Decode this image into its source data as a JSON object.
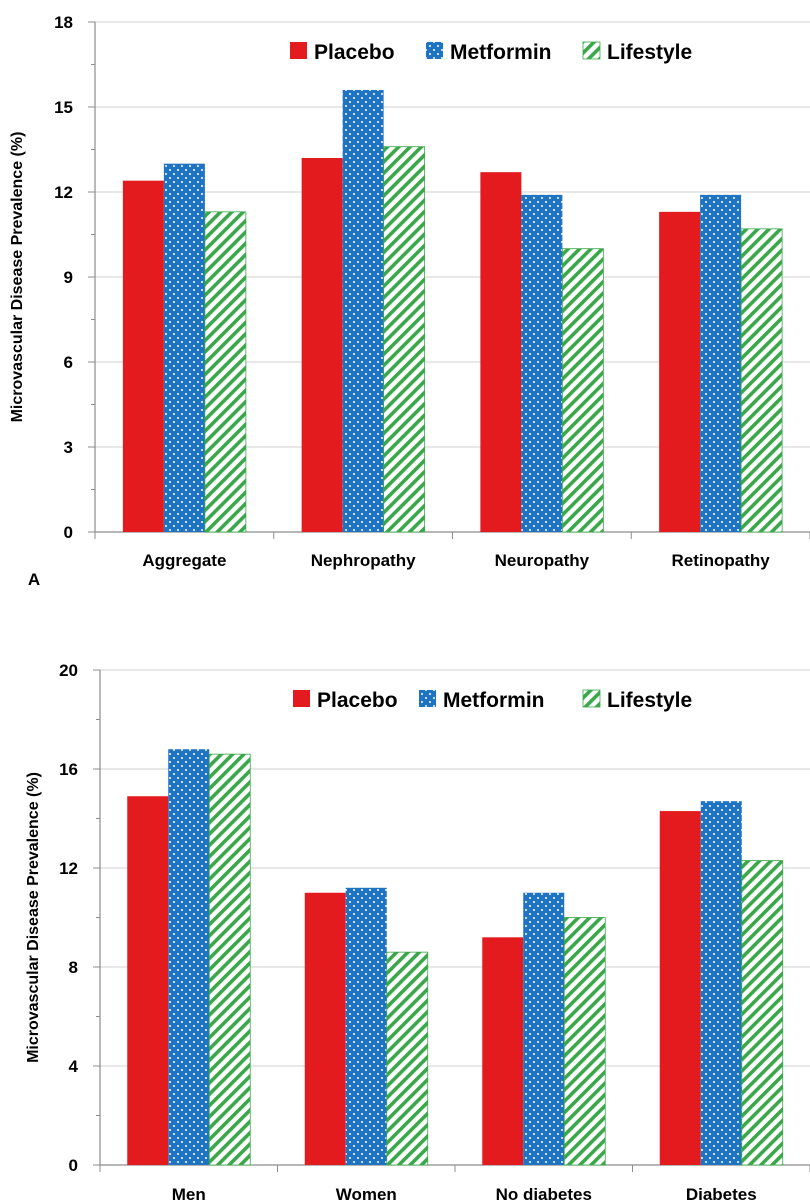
{
  "colors": {
    "placebo": "#e31b1f",
    "metformin": "#1f73c3",
    "lifestyle": "#3aa84a",
    "axis": "#8c8c8c",
    "grid": "#d0d0d0"
  },
  "chart_data": [
    {
      "type": "bar",
      "panel_label": "A",
      "ylabel": "Microvascular Disease Prevalence (%)",
      "xlabel": "",
      "categories": [
        "Aggregate",
        "Nephropathy",
        "Neuropathy",
        "Retinopathy"
      ],
      "ylim": [
        0,
        18
      ],
      "yticks": [
        0,
        3,
        6,
        9,
        12,
        15,
        18
      ],
      "grid": true,
      "legend_position": "top",
      "series": [
        {
          "name": "Placebo",
          "pattern": "solid",
          "values": [
            12.4,
            13.2,
            12.7,
            11.3
          ]
        },
        {
          "name": "Metformin",
          "pattern": "dots",
          "values": [
            13.0,
            15.6,
            11.9,
            11.9
          ]
        },
        {
          "name": "Lifestyle",
          "pattern": "stripes",
          "values": [
            11.3,
            13.6,
            10.0,
            10.7
          ]
        }
      ]
    },
    {
      "type": "bar",
      "panel_label": "",
      "ylabel": "Microvascular Disease Prevalence (%)",
      "xlabel": "",
      "categories": [
        "Men",
        "Women",
        "No diabetes",
        "Diabetes"
      ],
      "ylim": [
        0,
        20
      ],
      "yticks": [
        0,
        4,
        8,
        12,
        16,
        20
      ],
      "grid": true,
      "legend_position": "top",
      "series": [
        {
          "name": "Placebo",
          "pattern": "solid",
          "values": [
            14.9,
            11.0,
            9.2,
            14.3
          ]
        },
        {
          "name": "Metformin",
          "pattern": "dots",
          "values": [
            16.8,
            11.2,
            11.0,
            14.7
          ]
        },
        {
          "name": "Lifestyle",
          "pattern": "stripes",
          "values": [
            16.6,
            8.6,
            10.0,
            12.3
          ]
        }
      ]
    }
  ]
}
